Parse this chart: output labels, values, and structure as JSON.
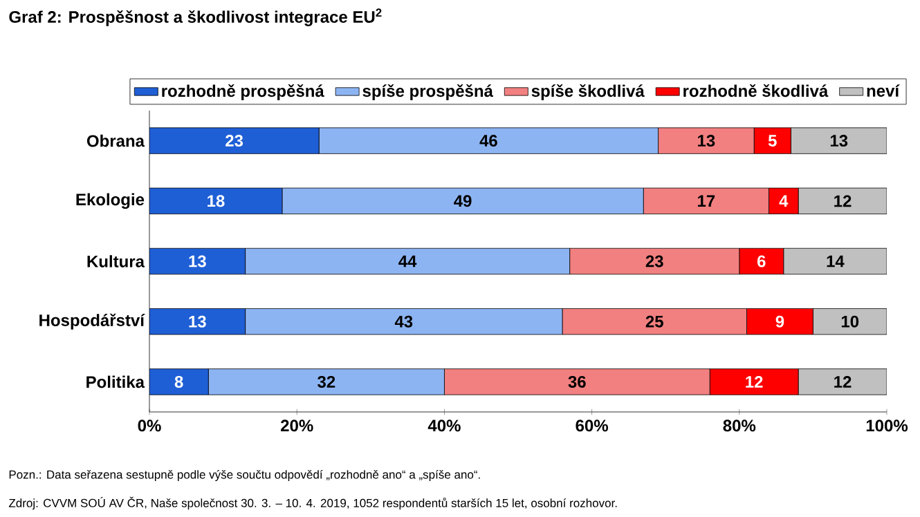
{
  "chart_data": {
    "type": "bar",
    "orientation": "horizontal",
    "stacked": true,
    "title": "Graf 2: Prospěšnost a škodlivost integrace EU$^{2}$",
    "categories": [
      "Obrana",
      "Ekologie",
      "Kultura",
      "Hospodářství",
      "Politika"
    ],
    "series": [
      {
        "name": "rozhodně prospěšná",
        "color": "#1f5fd6",
        "values": [
          23,
          18,
          13,
          13,
          8
        ]
      },
      {
        "name": "spíše prospěšná",
        "color": "#8db4f2",
        "values": [
          46,
          49,
          44,
          43,
          32
        ]
      },
      {
        "name": "spíše škodlivá",
        "color": "#f28080",
        "values": [
          13,
          17,
          23,
          25,
          36
        ]
      },
      {
        "name": "rozhodně škodlivá",
        "color": "#ff0000",
        "values": [
          5,
          4,
          6,
          9,
          12
        ]
      },
      {
        "name": "neví",
        "color": "#c0c0c0",
        "values": [
          13,
          12,
          14,
          10,
          12
        ]
      }
    ],
    "xlim": [
      0,
      100
    ],
    "xticks": [
      {
        "value": 0,
        "label": "0%"
      },
      {
        "value": 20,
        "label": "20%"
      },
      {
        "value": 40,
        "label": "40%"
      },
      {
        "value": 60,
        "label": "60%"
      },
      {
        "value": 80,
        "label": "80%"
      },
      {
        "value": 100,
        "label": "100%"
      }
    ],
    "data_labels": true,
    "legend": "top",
    "grid": false,
    "annotations": [
      "Pozn.: Data seřazena sestupně podle výše součtu odpovědí „rozhodně ano“ a „spíše ano“.",
      "Zdroj: CVVM SOÚ AV ČR,  Naše společnost 30. 3. – 10. 4. 2019, 1052 respondentů starších 15 let, osobní rozhovor."
    ]
  }
}
